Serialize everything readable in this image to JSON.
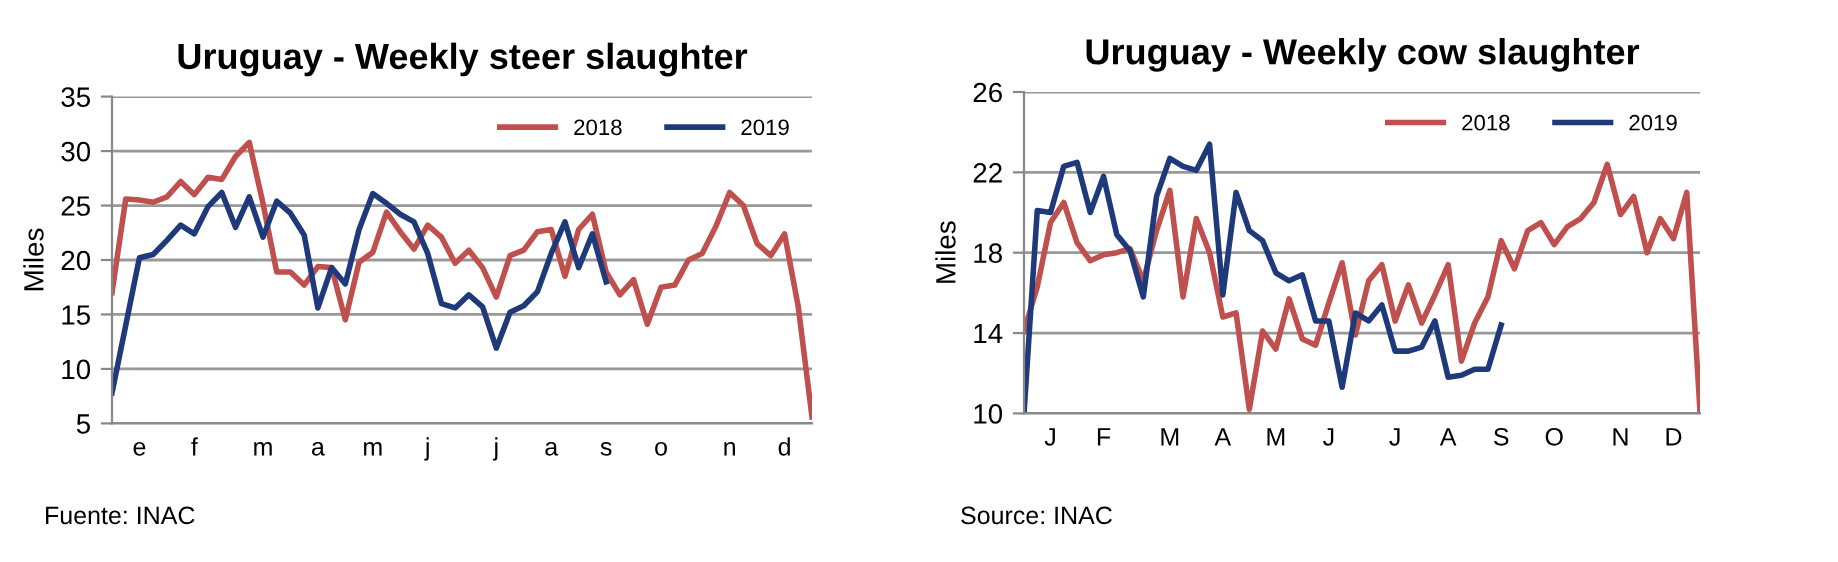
{
  "chart_data": [
    {
      "type": "line",
      "title": "Uruguay - Weekly steer slaughter",
      "ylabel": "Miles",
      "annotations": [
        "Fuente: INAC"
      ],
      "categories": [
        null,
        null,
        "e",
        null,
        null,
        null,
        "f",
        null,
        null,
        null,
        null,
        "m",
        null,
        null,
        null,
        "a",
        null,
        null,
        null,
        "m",
        null,
        null,
        null,
        "j",
        null,
        null,
        null,
        null,
        "j",
        null,
        null,
        null,
        "a",
        null,
        null,
        null,
        "s",
        null,
        null,
        null,
        "o",
        null,
        null,
        null,
        null,
        "n",
        null,
        null,
        null,
        "d",
        null,
        null
      ],
      "series": [
        {
          "name": "2018",
          "color": "#c0504d",
          "values": [
            17,
            25.6,
            25.5,
            25.3,
            25.8,
            27.2,
            26.0,
            27.6,
            27.4,
            29.5,
            30.8,
            25.2,
            18.9,
            18.9,
            17.7,
            19.4,
            19.3,
            14.5,
            19.8,
            20.7,
            24.4,
            22.6,
            21.0,
            23.2,
            22.1,
            19.7,
            20.9,
            19.3,
            16.6,
            20.4,
            20.9,
            22.6,
            22.8,
            18.5,
            22.8,
            24.2,
            18.9,
            16.8,
            18.2,
            14.1,
            17.5,
            17.7,
            20.0,
            20.6,
            23.1,
            26.2,
            25.0,
            21.5,
            20.4,
            22.4,
            15.7,
            5.6
          ]
        },
        {
          "name": "2019",
          "color": "#1f3a7a",
          "values": [
            7.8,
            14,
            20.2,
            20.5,
            21.8,
            23.2,
            22.4,
            24.9,
            26.2,
            23.0,
            25.8,
            22.1,
            25.4,
            24.3,
            22.3,
            15.6,
            19.3,
            17.8,
            22.8,
            26.1,
            25.2,
            24.2,
            23.5,
            20.6,
            16.0,
            15.6,
            16.8,
            15.7,
            11.9,
            15.2,
            15.8,
            17.1,
            20.6,
            23.5,
            19.3,
            22.4,
            18.0,
            null,
            null,
            null,
            null,
            null,
            null,
            null,
            null,
            null,
            null,
            null,
            null,
            null,
            null,
            null
          ]
        }
      ],
      "ylim": [
        5,
        35
      ],
      "yticks": [
        5,
        10,
        15,
        20,
        25,
        30,
        35
      ],
      "grid": "y",
      "legend": "top right"
    },
    {
      "type": "line",
      "title": "Uruguay - Weekly cow slaughter",
      "ylabel": "Miles",
      "annotations": [
        "Source: INAC"
      ],
      "categories": [
        null,
        null,
        "J",
        null,
        null,
        null,
        "F",
        null,
        null,
        null,
        null,
        "M",
        null,
        null,
        null,
        "A",
        null,
        null,
        null,
        "M",
        null,
        null,
        null,
        "J",
        null,
        null,
        null,
        null,
        "J",
        null,
        null,
        null,
        "A",
        null,
        null,
        null,
        "S",
        null,
        null,
        null,
        "O",
        null,
        null,
        null,
        null,
        "N",
        null,
        null,
        null,
        "D",
        null,
        null
      ],
      "series": [
        {
          "name": "2018",
          "color": "#c0504d",
          "values": [
            14.1,
            16.3,
            19.5,
            20.5,
            18.5,
            17.6,
            17.9,
            18.0,
            18.2,
            16.6,
            19.1,
            21.1,
            15.8,
            19.7,
            18.0,
            14.8,
            15.0,
            10.2,
            14.1,
            13.2,
            15.7,
            13.7,
            13.4,
            15.5,
            17.5,
            13.9,
            16.6,
            17.4,
            14.6,
            16.4,
            14.5,
            15.9,
            17.4,
            12.6,
            14.5,
            15.8,
            18.6,
            17.2,
            19.1,
            19.5,
            18.4,
            19.3,
            19.7,
            20.5,
            22.4,
            19.9,
            20.8,
            18.0,
            19.7,
            18.7,
            21.0,
            10.1
          ]
        },
        {
          "name": "2019",
          "color": "#1f3a7a",
          "values": [
            10.0,
            20.1,
            20.0,
            22.3,
            22.5,
            20.0,
            21.8,
            18.9,
            18.1,
            15.8,
            20.8,
            22.7,
            22.3,
            22.1,
            23.4,
            15.9,
            21.0,
            19.1,
            18.6,
            17.0,
            16.6,
            16.9,
            14.6,
            14.6,
            11.3,
            15.0,
            14.6,
            15.4,
            13.1,
            13.1,
            13.3,
            14.6,
            11.8,
            11.9,
            12.2,
            12.2,
            14.4,
            null,
            null,
            null,
            null,
            null,
            null,
            null,
            null,
            null,
            null,
            null,
            null,
            null,
            null,
            null
          ]
        }
      ],
      "ylim": [
        10,
        26
      ],
      "yticks": [
        10,
        14,
        18,
        22,
        26
      ],
      "grid": "y",
      "legend": "top right"
    }
  ]
}
